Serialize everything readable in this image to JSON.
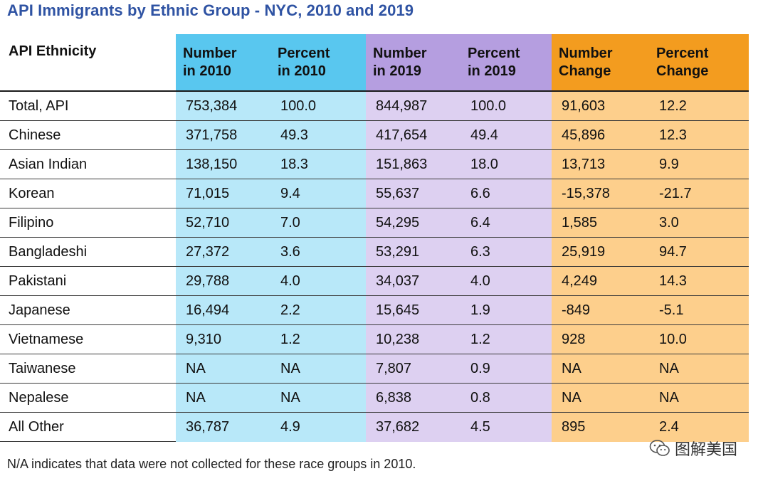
{
  "chart_data": {
    "type": "table",
    "title": "API Immigrants by Ethnic Group - NYC, 2010 and 2019",
    "columns": [
      {
        "key": "ethnicity",
        "label_lines": [
          "API Ethnicity"
        ],
        "group": "eth"
      },
      {
        "key": "n2010",
        "label_lines": [
          "Number",
          "in 2010"
        ],
        "group": "2010"
      },
      {
        "key": "p2010",
        "label_lines": [
          "Percent",
          "in 2010"
        ],
        "group": "2010"
      },
      {
        "key": "n2019",
        "label_lines": [
          "Number",
          "in 2019"
        ],
        "group": "2019"
      },
      {
        "key": "p2019",
        "label_lines": [
          "Percent",
          "in 2019"
        ],
        "group": "2019"
      },
      {
        "key": "nchg",
        "label_lines": [
          "Number",
          "Change"
        ],
        "group": "chg"
      },
      {
        "key": "pchg",
        "label_lines": [
          "Percent",
          "Change"
        ],
        "group": "chg"
      }
    ],
    "rows": [
      [
        "Total, API",
        "753,384",
        "100.0",
        "844,987",
        "100.0",
        "91,603",
        "12.2"
      ],
      [
        "Chinese",
        "371,758",
        "49.3",
        "417,654",
        "49.4",
        "45,896",
        "12.3"
      ],
      [
        "Asian Indian",
        "138,150",
        "18.3",
        "151,863",
        "18.0",
        "13,713",
        "9.9"
      ],
      [
        "Korean",
        "71,015",
        "9.4",
        "55,637",
        "6.6",
        "-15,378",
        "-21.7"
      ],
      [
        "Filipino",
        "52,710",
        "7.0",
        "54,295",
        "6.4",
        "1,585",
        "3.0"
      ],
      [
        "Bangladeshi",
        "27,372",
        "3.6",
        "53,291",
        "6.3",
        "25,919",
        "94.7"
      ],
      [
        "Pakistani",
        "29,788",
        "4.0",
        "34,037",
        "4.0",
        "4,249",
        "14.3"
      ],
      [
        "Japanese",
        "16,494",
        "2.2",
        "15,645",
        "1.9",
        "-849",
        "-5.1"
      ],
      [
        "Vietnamese",
        "9,310",
        "1.2",
        "10,238",
        "1.2",
        "928",
        "10.0"
      ],
      [
        "Taiwanese",
        "NA",
        "NA",
        "7,807",
        "0.9",
        "NA",
        "NA"
      ],
      [
        "Nepalese",
        "NA",
        "NA",
        "6,838",
        "0.8",
        "NA",
        "NA"
      ],
      [
        "All Other",
        "36,787",
        "4.9",
        "37,682",
        "4.5",
        "895",
        "2.4"
      ]
    ],
    "colors": {
      "title": "#2f53a3",
      "header_2010": "#59c7ef",
      "body_2010": "#b8e8f9",
      "header_2019": "#b59ee0",
      "body_2019": "#ddd0f1",
      "header_change": "#f39c1f",
      "body_change": "#fdcf8c"
    }
  },
  "watermark": {
    "icon": "wechat-icon",
    "text": "图解美国"
  },
  "footnote": "N/A indicates that data were not collected for these race groups in 2010."
}
